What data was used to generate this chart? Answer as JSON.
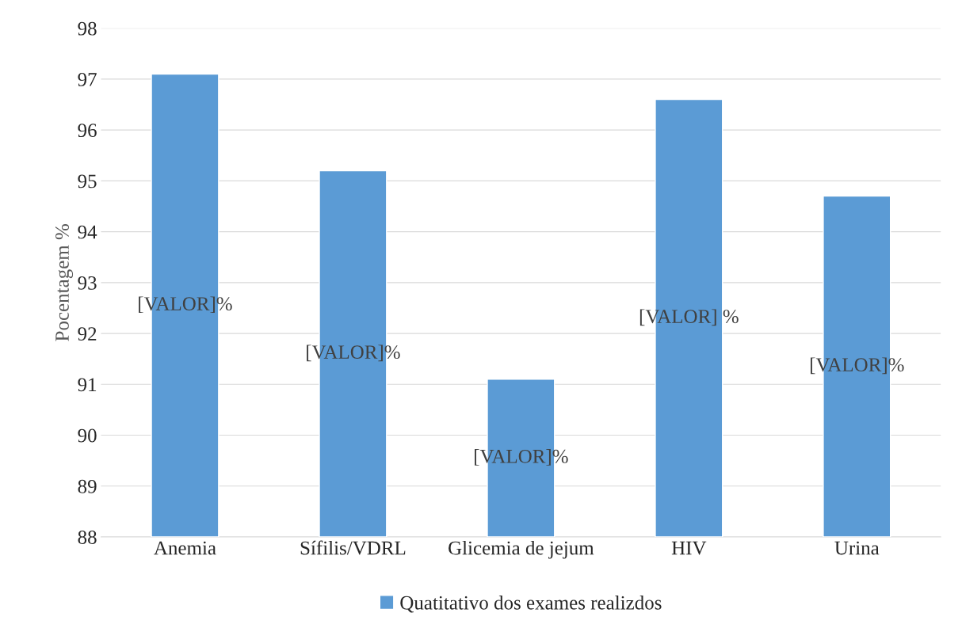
{
  "chart_data": {
    "type": "bar",
    "ylabel": "Pocentagem %",
    "categories": [
      "Anemia",
      "Sífilis/VDRL",
      "Glicemia de jejum",
      "HIV",
      "Urina"
    ],
    "series": [
      {
        "name": "Quatitativo dos exames realizdos",
        "color": "#5b9bd5",
        "values": [
          97.1,
          95.2,
          91.1,
          96.6,
          94.7
        ],
        "value_labels": [
          "[VALOR]%",
          "[VALOR]%",
          "[VALOR]%",
          "[VALOR] %",
          "[VALOR]%"
        ]
      }
    ],
    "ylim": [
      88,
      98
    ],
    "yticks": [
      88,
      89,
      90,
      91,
      92,
      93,
      94,
      95,
      96,
      97,
      98
    ],
    "grid": "y",
    "legend": "bottom"
  }
}
